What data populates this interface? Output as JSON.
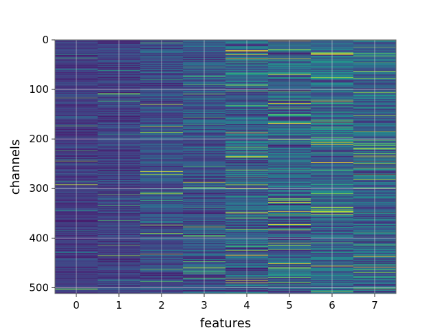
{
  "chart_data": {
    "type": "heatmap",
    "title": "",
    "xlabel": "features",
    "ylabel": "channels",
    "x_categories": [
      "0",
      "1",
      "2",
      "3",
      "4",
      "5",
      "6",
      "7"
    ],
    "xlim": [
      -0.5,
      7.5
    ],
    "ylim": [
      512,
      0
    ],
    "y_inverted": true,
    "y_ticks": [
      0,
      100,
      200,
      300,
      400,
      500
    ],
    "n_channels": 512,
    "grid": true,
    "colormap": "viridis",
    "column_value_profile": [
      {
        "feature": 0,
        "mean": 0.18,
        "spread": 0.1
      },
      {
        "feature": 1,
        "mean": 0.2,
        "spread": 0.12
      },
      {
        "feature": 2,
        "mean": 0.24,
        "spread": 0.15
      },
      {
        "feature": 3,
        "mean": 0.26,
        "spread": 0.18
      },
      {
        "feature": 4,
        "mean": 0.3,
        "spread": 0.22
      },
      {
        "feature": 5,
        "mean": 0.32,
        "spread": 0.25
      },
      {
        "feature": 6,
        "mean": 0.34,
        "spread": 0.24
      },
      {
        "feature": 7,
        "mean": 0.3,
        "spread": 0.22
      }
    ]
  },
  "colors": {
    "frame": "#666666",
    "grid": "#dddddd",
    "background": "#ffffff"
  }
}
